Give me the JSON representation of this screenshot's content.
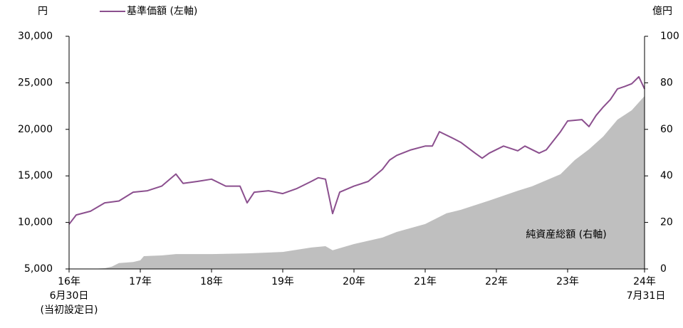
{
  "chart_data": {
    "type": "line",
    "y_axis_title": "円",
    "y2_axis_title": "億円",
    "xlim": [
      2016.5,
      2024.58
    ],
    "xticks": [
      {
        "value": 2016.5,
        "label": "16年"
      },
      {
        "value": 2017.5,
        "label": "17年"
      },
      {
        "value": 2018.5,
        "label": "18年"
      },
      {
        "value": 2019.5,
        "label": "19年"
      },
      {
        "value": 2020.5,
        "label": "20年"
      },
      {
        "value": 2021.5,
        "label": "21年"
      },
      {
        "value": 2022.5,
        "label": "22年"
      },
      {
        "value": 2023.5,
        "label": "23年"
      },
      {
        "value": 2024.58,
        "label": "24年"
      }
    ],
    "start_date_label": "6月30日",
    "start_note": "(当初設定日)",
    "end_date_label": "7月31日",
    "ylim": [
      5000,
      30000
    ],
    "yticks": [
      {
        "value": 5000,
        "label": "5,000"
      },
      {
        "value": 10000,
        "label": "10,000"
      },
      {
        "value": 15000,
        "label": "15,000"
      },
      {
        "value": 20000,
        "label": "20,000"
      },
      {
        "value": 25000,
        "label": "25,000"
      },
      {
        "value": 30000,
        "label": "30,000"
      }
    ],
    "y2lim": [
      0,
      100
    ],
    "y2ticks": [
      0,
      20,
      40,
      60,
      80,
      100
    ],
    "area_label": "純資産総額 (右軸)",
    "series": [
      {
        "name": "純資産総額 (右軸)",
        "type": "area",
        "axis": "y2",
        "color": "#bfbfbf",
        "x": [
          2016.5,
          2016.8,
          2017.0,
          2017.1,
          2017.2,
          2017.4,
          2017.5,
          2017.55,
          2017.8,
          2018.0,
          2018.5,
          2019.0,
          2019.5,
          2019.9,
          2020.1,
          2020.2,
          2020.5,
          2020.9,
          2021.1,
          2021.5,
          2021.8,
          2022.0,
          2022.4,
          2022.8,
          2023.0,
          2023.4,
          2023.6,
          2023.8,
          2024.0,
          2024.2,
          2024.4,
          2024.58
        ],
        "values": [
          0,
          0,
          0.3,
          1,
          2.5,
          3,
          3.7,
          5.5,
          5.8,
          6.4,
          6.4,
          6.7,
          7.3,
          9.2,
          9.8,
          8,
          10.7,
          13.5,
          15.9,
          19.3,
          23.9,
          25.4,
          29.4,
          33.6,
          35.5,
          40.7,
          46.8,
          51.4,
          56.9,
          64.2,
          68.2,
          74.3
        ]
      },
      {
        "name": "基準価額 (左軸)",
        "type": "line",
        "axis": "y",
        "color": "#8b4f8e",
        "x": [
          2016.5,
          2016.6,
          2016.8,
          2017.0,
          2017.2,
          2017.4,
          2017.6,
          2017.8,
          2018.0,
          2018.1,
          2018.3,
          2018.5,
          2018.7,
          2018.9,
          2019.0,
          2019.1,
          2019.3,
          2019.5,
          2019.7,
          2019.9,
          2020.0,
          2020.1,
          2020.2,
          2020.3,
          2020.5,
          2020.7,
          2020.9,
          2021.0,
          2021.1,
          2021.3,
          2021.5,
          2021.6,
          2021.7,
          2021.9,
          2022.0,
          2022.2,
          2022.3,
          2022.4,
          2022.6,
          2022.8,
          2022.9,
          2023.1,
          2023.2,
          2023.4,
          2023.5,
          2023.7,
          2023.8,
          2023.9,
          2024.0,
          2024.1,
          2024.2,
          2024.3,
          2024.4,
          2024.5,
          2024.58
        ],
        "values": [
          9800,
          10800,
          11200,
          12100,
          12300,
          13250,
          13400,
          13900,
          15200,
          14200,
          14400,
          14650,
          13900,
          13900,
          12100,
          13250,
          13400,
          13100,
          13650,
          14400,
          14800,
          14650,
          10950,
          13250,
          13900,
          14400,
          15700,
          16700,
          17200,
          17800,
          18200,
          18200,
          19750,
          19000,
          18600,
          17450,
          16900,
          17450,
          18200,
          17700,
          18200,
          17450,
          17800,
          19750,
          20900,
          21050,
          20300,
          21500,
          22400,
          23200,
          24350,
          24600,
          24900,
          25650,
          24350
        ]
      }
    ]
  }
}
